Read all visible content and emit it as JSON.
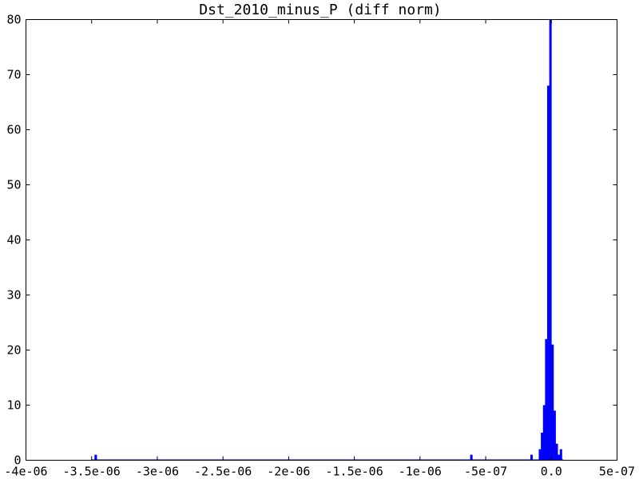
{
  "chart_data": {
    "type": "bar",
    "title": "Dst_2010_minus_P (diff norm)",
    "xlabel": "",
    "ylabel": "",
    "xlim": [
      -4e-06,
      5e-07
    ],
    "ylim": [
      0,
      80
    ],
    "grid": false,
    "legend": "none",
    "bar_color": "#0000ff",
    "bin_width": 1.6e-08,
    "x_ticks": [
      {
        "value": -4e-06,
        "label": "-4e-06"
      },
      {
        "value": -3.5e-06,
        "label": "-3.5e-06"
      },
      {
        "value": -3e-06,
        "label": "-3e-06"
      },
      {
        "value": -2.5e-06,
        "label": "-2.5e-06"
      },
      {
        "value": -2e-06,
        "label": "-2e-06"
      },
      {
        "value": -1.5e-06,
        "label": "-1.5e-06"
      },
      {
        "value": -1e-06,
        "label": "-1e-06"
      },
      {
        "value": -5e-07,
        "label": "-5e-07"
      },
      {
        "value": 0,
        "label": "0.0"
      },
      {
        "value": 5e-07,
        "label": "5e-07"
      }
    ],
    "y_ticks": [
      {
        "value": 0,
        "label": "0"
      },
      {
        "value": 10,
        "label": "10"
      },
      {
        "value": 20,
        "label": "20"
      },
      {
        "value": 30,
        "label": "30"
      },
      {
        "value": 40,
        "label": "40"
      },
      {
        "value": 50,
        "label": "50"
      },
      {
        "value": 60,
        "label": "60"
      },
      {
        "value": 70,
        "label": "70"
      },
      {
        "value": 80,
        "label": "80"
      }
    ],
    "bins": [
      {
        "x": -3.47e-06,
        "count": 1
      },
      {
        "x": -6.1e-07,
        "count": 1
      },
      {
        "x": -1.52e-07,
        "count": 1
      },
      {
        "x": -8.8e-08,
        "count": 2
      },
      {
        "x": -7.2e-08,
        "count": 5
      },
      {
        "x": -5.6e-08,
        "count": 10
      },
      {
        "x": -4e-08,
        "count": 22
      },
      {
        "x": -2.4e-08,
        "count": 68
      },
      {
        "x": -8e-09,
        "count": 80
      },
      {
        "x": 8e-09,
        "count": 21
      },
      {
        "x": 2.4e-08,
        "count": 9
      },
      {
        "x": 4e-08,
        "count": 3
      },
      {
        "x": 5.6e-08,
        "count": 1
      },
      {
        "x": 7.2e-08,
        "count": 2
      }
    ]
  }
}
